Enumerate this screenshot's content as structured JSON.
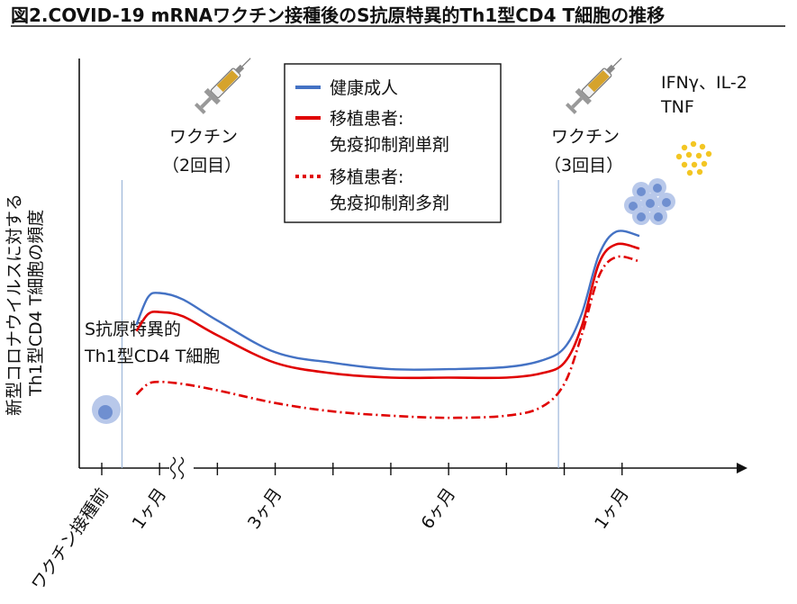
{
  "chart_data": {
    "type": "line",
    "title": "図2.COVID-19 mRNAワクチン接種後のS抗原特異的Th1型CD4 T細胞の推移",
    "ylabel_lines": [
      "新型コロナウイルスに対する",
      "Th1型CD4 T細胞の頻度"
    ],
    "x_tick_labels": [
      "ワクチン接種前",
      "1ヶ月",
      "3ヶ月",
      "6ヶ月",
      "1ヶ月"
    ],
    "x_tick_positions": [
      0,
      1,
      3,
      6,
      9
    ],
    "x_range": [
      -0.3,
      10.9
    ],
    "y_range": [
      0,
      100
    ],
    "vaccine_markers": [
      {
        "x": 0.35,
        "label": "ワクチン",
        "sub": "（2回目）"
      },
      {
        "x": 7.9,
        "label": "ワクチン",
        "sub": "（3回目）"
      }
    ],
    "cell_label_lines": [
      "S抗原特異的",
      "Th1型CD4 T細胞"
    ],
    "cytokine_label_lines": [
      "IFNγ、IL-2",
      "TNF"
    ],
    "legend": [
      {
        "name": "健康成人",
        "style": "solid",
        "color": "#4472C4"
      },
      {
        "name": "移植患者:",
        "name2": "免疫抑制剤単剤",
        "style": "solid",
        "color": "#E00000"
      },
      {
        "name": "移植患者:",
        "name2": "免疫抑制剤多剤",
        "style": "dashdot",
        "color": "#E00000"
      }
    ],
    "series": [
      {
        "name": "健康成人",
        "color": "#4472C4",
        "style": "solid",
        "x": [
          0.6,
          0.8,
          1.0,
          1.4,
          2.0,
          3.0,
          4.0,
          5.0,
          6.0,
          7.0,
          7.6,
          8.0,
          8.3,
          8.6,
          8.9,
          9.3
        ],
        "y": [
          55,
          68,
          70,
          67,
          57,
          42,
          37,
          34,
          34,
          35,
          38,
          44,
          60,
          88,
          99,
          97
        ]
      },
      {
        "name": "移植患者: 免疫抑制剤単剤",
        "color": "#E00000",
        "style": "solid",
        "x": [
          0.6,
          0.8,
          1.0,
          1.4,
          2.0,
          3.0,
          4.0,
          5.0,
          6.0,
          7.0,
          7.6,
          8.0,
          8.3,
          8.6,
          8.9,
          9.3
        ],
        "y": [
          52,
          60,
          61,
          59,
          50,
          37,
          32,
          30,
          30,
          30,
          32,
          37,
          54,
          84,
          93,
          91
        ]
      },
      {
        "name": "移植患者: 免疫抑制剤多剤",
        "color": "#E00000",
        "style": "dashdot",
        "x": [
          0.6,
          0.8,
          1.0,
          1.4,
          2.0,
          3.0,
          4.0,
          5.0,
          6.0,
          7.0,
          7.6,
          8.0,
          8.3,
          8.6,
          8.9,
          9.3
        ],
        "y": [
          22,
          27,
          28,
          27,
          24,
          18,
          14,
          12,
          11,
          12,
          16,
          27,
          50,
          78,
          87,
          85
        ]
      }
    ]
  }
}
